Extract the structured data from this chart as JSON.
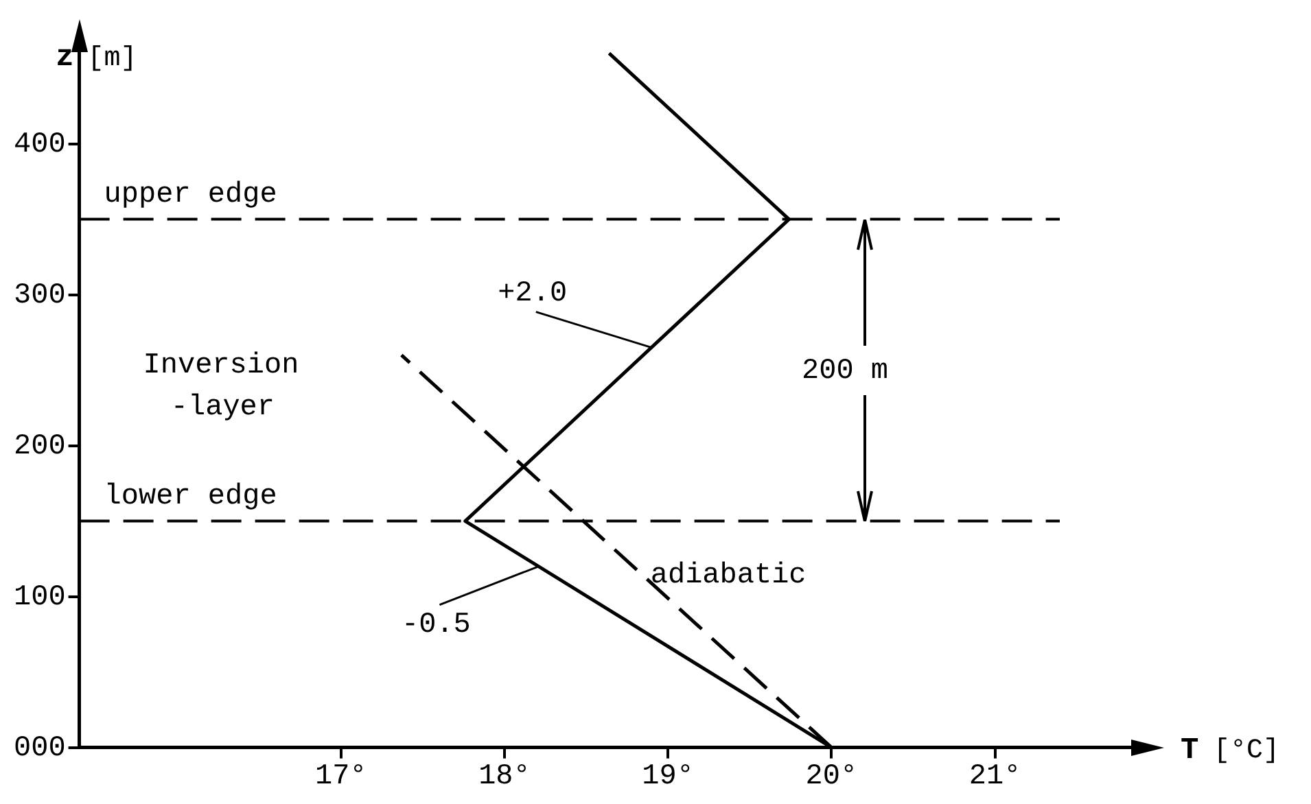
{
  "chart_data": {
    "type": "line",
    "xlabel": "T [°C]",
    "ylabel": "z [m]",
    "xlim": [
      15.4,
      21.9
    ],
    "ylim": [
      0,
      468
    ],
    "xticks": [
      {
        "value": 17,
        "label": "17°"
      },
      {
        "value": 18,
        "label": "18°"
      },
      {
        "value": 19,
        "label": "19°"
      },
      {
        "value": 20,
        "label": "20°"
      },
      {
        "value": 21,
        "label": "21°"
      }
    ],
    "yticks": [
      {
        "value": 0,
        "label": "000"
      },
      100,
      200,
      300,
      400
    ],
    "series": [
      {
        "type": "line",
        "color": "#000000",
        "x": [
          20,
          17.76,
          19.74,
          18.64
        ],
        "values": [
          0,
          150,
          350,
          460
        ],
        "line_style": "solid"
      },
      {
        "type": "line",
        "name": "adiabatic",
        "color": "#000000",
        "x": [
          20,
          17.37
        ],
        "values": [
          0,
          260
        ],
        "line_style": "dashed"
      }
    ],
    "ref_lines": [
      {
        "axis": "y",
        "value": 150,
        "label": "lower edge",
        "color": "#000000",
        "line_style": "dashed"
      },
      {
        "axis": "y",
        "value": 350,
        "label": "upper edge",
        "color": "#000000",
        "line_style": "dashed"
      }
    ],
    "annotations": [
      "Inversion",
      "-layer",
      {
        "text": "+2.0",
        "x": 18.9,
        "y": 265
      },
      {
        "text": "-0.5",
        "x": 18.21,
        "y": 120
      },
      {
        "text": "200 m",
        "x": 20.2,
        "y": 350
      }
    ],
    "legend": false
  }
}
